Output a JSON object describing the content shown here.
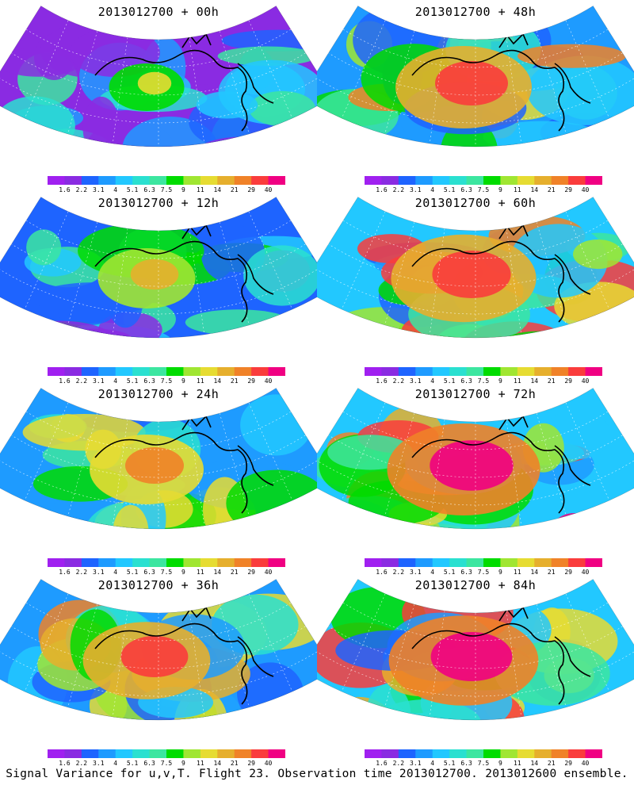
{
  "caption": "Signal Variance for u,v,T. Flight 23. Observation time 2013012700. 2013012600 ensemble.",
  "panels": [
    {
      "title": "2013012700 + 00h",
      "intensity": 0.25
    },
    {
      "title": "2013012700 + 48h",
      "intensity": 0.8
    },
    {
      "title": "2013012700 + 12h",
      "intensity": 0.45
    },
    {
      "title": "2013012700 + 60h",
      "intensity": 0.88
    },
    {
      "title": "2013012700 + 24h",
      "intensity": 0.6
    },
    {
      "title": "2013012700 + 72h",
      "intensity": 0.95
    },
    {
      "title": "2013012700 + 36h",
      "intensity": 0.72
    },
    {
      "title": "2013012700 + 84h",
      "intensity": 0.92
    }
  ],
  "colorbar": {
    "labels": [
      "1.6",
      "2.2",
      "3.1",
      "4",
      "5.1",
      "6.3",
      "7.5",
      "9",
      "11",
      "14",
      "21",
      "29",
      "40"
    ],
    "colors": [
      "#a020f0",
      "#8a2be2",
      "#1e64ff",
      "#1e9bff",
      "#22c8ff",
      "#2ae0d0",
      "#3ce6a0",
      "#00dc00",
      "#a0e632",
      "#e6dc32",
      "#e6af2d",
      "#f08228",
      "#fa3c3c",
      "#f00082"
    ]
  }
}
